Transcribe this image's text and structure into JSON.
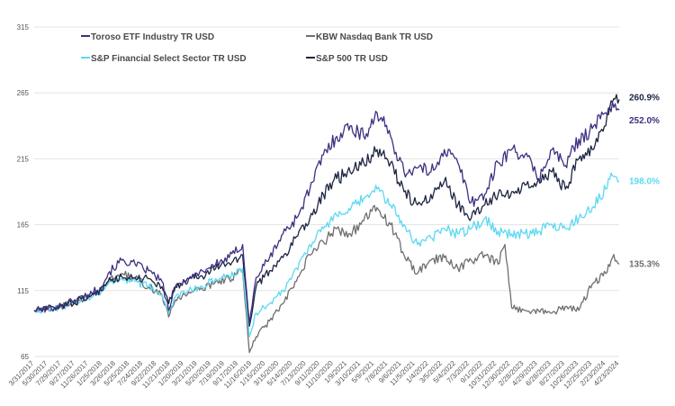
{
  "chart_data": {
    "type": "line",
    "title": "",
    "xlabel": "",
    "ylabel": "",
    "ylim": [
      65,
      315
    ],
    "y_ticks": [
      65,
      115,
      165,
      215,
      265,
      315
    ],
    "grid": "horizontal",
    "legend_placement": "top-left",
    "x_tick_labels": [
      "3/31/2017",
      "5/30/2017",
      "7/29/2017",
      "9/27/2017",
      "11/26/2017",
      "1/25/2018",
      "3/26/2018",
      "5/25/2018",
      "7/24/2018",
      "9/22/2018",
      "11/21/2018",
      "1/20/2019",
      "3/21/2019",
      "5/20/2019",
      "7/19/2019",
      "9/17/2019",
      "11/16/2019",
      "1/15/2020",
      "3/15/2020",
      "5/14/2020",
      "7/13/2020",
      "9/11/2020",
      "11/10/2020",
      "1/9/2021",
      "3/10/2021",
      "5/9/2021",
      "7/8/2021",
      "9/6/2021",
      "11/5/2021",
      "1/4/2022",
      "3/5/2022",
      "5/4/2022",
      "7/3/2022",
      "9/1/2022",
      "10/31/2022",
      "12/30/2022",
      "2/28/2023",
      "4/29/2023",
      "6/28/2023",
      "8/27/2023",
      "10/26/2023",
      "12/25/2023",
      "2/23/2024",
      "4/23/2024"
    ],
    "series": [
      {
        "name": "Toroso ETF Industry TR USD",
        "color": "#3d2f80",
        "end_label": "252.0%",
        "points": [
          [
            0,
            100
          ],
          [
            3,
            102
          ],
          [
            6,
            108
          ],
          [
            8,
            112
          ],
          [
            10,
            118
          ],
          [
            11,
            128
          ],
          [
            13,
            138
          ],
          [
            15,
            135
          ],
          [
            17,
            130
          ],
          [
            19,
            122
          ],
          [
            20,
            100
          ],
          [
            21,
            118
          ],
          [
            23,
            124
          ],
          [
            25,
            130
          ],
          [
            27,
            135
          ],
          [
            29,
            140
          ],
          [
            31,
            150
          ],
          [
            32,
            90
          ],
          [
            33,
            125
          ],
          [
            35,
            140
          ],
          [
            37,
            158
          ],
          [
            39,
            170
          ],
          [
            41,
            192
          ],
          [
            43,
            218
          ],
          [
            45,
            232
          ],
          [
            47,
            240
          ],
          [
            49,
            232
          ],
          [
            51,
            250
          ],
          [
            53,
            232
          ],
          [
            55,
            205
          ],
          [
            57,
            208
          ],
          [
            59,
            205
          ],
          [
            61,
            222
          ],
          [
            63,
            212
          ],
          [
            65,
            182
          ],
          [
            67,
            188
          ],
          [
            69,
            212
          ],
          [
            71,
            222
          ],
          [
            73,
            218
          ],
          [
            75,
            200
          ],
          [
            77,
            222
          ],
          [
            79,
            210
          ],
          [
            81,
            230
          ],
          [
            83,
            238
          ],
          [
            85,
            250
          ],
          [
            86,
            258
          ],
          [
            87,
            252
          ]
        ]
      },
      {
        "name": "KBW Nasdaq Bank TR USD",
        "color": "#6e6e6e",
        "end_label": "135.3%",
        "points": [
          [
            0,
            100
          ],
          [
            3,
            101
          ],
          [
            6,
            107
          ],
          [
            8,
            110
          ],
          [
            10,
            115
          ],
          [
            11,
            122
          ],
          [
            13,
            128
          ],
          [
            15,
            124
          ],
          [
            17,
            118
          ],
          [
            19,
            112
          ],
          [
            20,
            95
          ],
          [
            21,
            108
          ],
          [
            23,
            114
          ],
          [
            25,
            116
          ],
          [
            27,
            122
          ],
          [
            29,
            124
          ],
          [
            31,
            130
          ],
          [
            32,
            68
          ],
          [
            33,
            80
          ],
          [
            35,
            92
          ],
          [
            37,
            105
          ],
          [
            39,
            122
          ],
          [
            41,
            142
          ],
          [
            43,
            152
          ],
          [
            45,
            162
          ],
          [
            47,
            158
          ],
          [
            49,
            168
          ],
          [
            51,
            178
          ],
          [
            53,
            165
          ],
          [
            55,
            142
          ],
          [
            57,
            128
          ],
          [
            59,
            138
          ],
          [
            61,
            140
          ],
          [
            63,
            132
          ],
          [
            65,
            138
          ],
          [
            67,
            142
          ],
          [
            69,
            135
          ],
          [
            70,
            150
          ],
          [
            71,
            102
          ],
          [
            73,
            100
          ],
          [
            75,
            100
          ],
          [
            77,
            98
          ],
          [
            79,
            103
          ],
          [
            81,
            100
          ],
          [
            83,
            120
          ],
          [
            85,
            128
          ],
          [
            86,
            140
          ],
          [
            87,
            135
          ]
        ]
      },
      {
        "name": "S&P Financial Select Sector TR USD",
        "color": "#5cd8f2",
        "end_label": "198.0%",
        "points": [
          [
            0,
            100
          ],
          [
            3,
            101
          ],
          [
            6,
            106
          ],
          [
            8,
            110
          ],
          [
            10,
            115
          ],
          [
            11,
            120
          ],
          [
            13,
            124
          ],
          [
            15,
            122
          ],
          [
            17,
            118
          ],
          [
            19,
            112
          ],
          [
            20,
            98
          ],
          [
            21,
            110
          ],
          [
            23,
            115
          ],
          [
            25,
            118
          ],
          [
            27,
            124
          ],
          [
            29,
            126
          ],
          [
            31,
            132
          ],
          [
            32,
            80
          ],
          [
            33,
            98
          ],
          [
            35,
            105
          ],
          [
            37,
            115
          ],
          [
            39,
            132
          ],
          [
            41,
            150
          ],
          [
            43,
            162
          ],
          [
            45,
            172
          ],
          [
            47,
            176
          ],
          [
            49,
            185
          ],
          [
            51,
            192
          ],
          [
            53,
            180
          ],
          [
            55,
            165
          ],
          [
            57,
            150
          ],
          [
            59,
            155
          ],
          [
            61,
            162
          ],
          [
            63,
            158
          ],
          [
            65,
            162
          ],
          [
            67,
            170
          ],
          [
            69,
            160
          ],
          [
            71,
            158
          ],
          [
            73,
            158
          ],
          [
            75,
            160
          ],
          [
            77,
            165
          ],
          [
            79,
            162
          ],
          [
            81,
            170
          ],
          [
            83,
            178
          ],
          [
            85,
            192
          ],
          [
            86,
            202
          ],
          [
            87,
            198
          ]
        ]
      },
      {
        "name": "S&P 500 TR USD",
        "color": "#1c2541",
        "end_label": "260.9%",
        "points": [
          [
            0,
            100
          ],
          [
            3,
            102
          ],
          [
            6,
            106
          ],
          [
            8,
            110
          ],
          [
            10,
            115
          ],
          [
            11,
            122
          ],
          [
            13,
            126
          ],
          [
            15,
            125
          ],
          [
            17,
            124
          ],
          [
            19,
            118
          ],
          [
            20,
            105
          ],
          [
            21,
            118
          ],
          [
            23,
            124
          ],
          [
            25,
            126
          ],
          [
            27,
            132
          ],
          [
            29,
            136
          ],
          [
            31,
            142
          ],
          [
            32,
            88
          ],
          [
            33,
            118
          ],
          [
            35,
            130
          ],
          [
            37,
            140
          ],
          [
            39,
            156
          ],
          [
            41,
            170
          ],
          [
            43,
            188
          ],
          [
            45,
            200
          ],
          [
            47,
            205
          ],
          [
            49,
            212
          ],
          [
            51,
            222
          ],
          [
            53,
            212
          ],
          [
            55,
            190
          ],
          [
            57,
            180
          ],
          [
            59,
            188
          ],
          [
            61,
            198
          ],
          [
            63,
            180
          ],
          [
            65,
            170
          ],
          [
            67,
            180
          ],
          [
            69,
            188
          ],
          [
            71,
            190
          ],
          [
            73,
            195
          ],
          [
            75,
            200
          ],
          [
            77,
            205
          ],
          [
            79,
            192
          ],
          [
            81,
            215
          ],
          [
            83,
            222
          ],
          [
            85,
            240
          ],
          [
            86,
            258
          ],
          [
            87,
            260
          ]
        ]
      }
    ]
  }
}
